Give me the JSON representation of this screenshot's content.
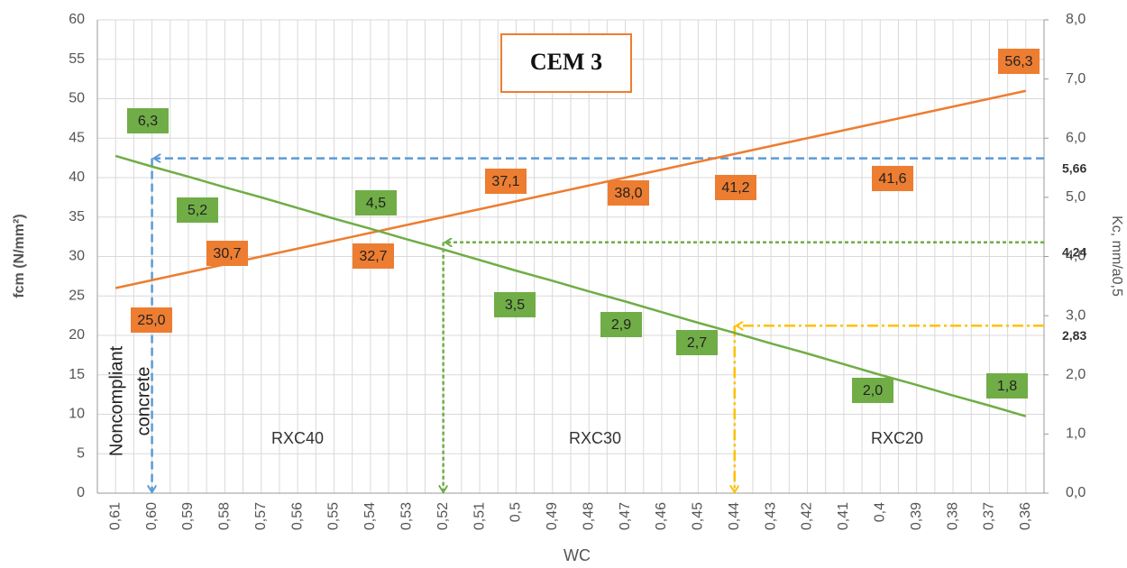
{
  "chart_data": {
    "type": "line",
    "title": "CEM 3",
    "x_label": "WC",
    "y_label": "fcm (N/mm²)",
    "y2_label": "Kc, mm/a0,5",
    "categories": [
      "0,61",
      "0,60",
      "0,59",
      "0,58",
      "0,57",
      "0,56",
      "0,55",
      "0,54",
      "0,53",
      "0,52",
      "0,51",
      "0,5",
      "0,49",
      "0,48",
      "0,47",
      "0,46",
      "0,45",
      "0,44",
      "0,43",
      "0,42",
      "0,41",
      "0,4",
      "0,39",
      "0,38",
      "0,37",
      "0,36"
    ],
    "series": [
      {
        "color": "#ed7d31",
        "values": [
          26,
          27,
          28,
          29,
          30,
          31,
          32,
          33,
          34,
          35,
          36,
          37,
          38,
          39,
          40,
          41,
          42,
          43,
          44,
          45,
          46,
          47,
          48,
          49,
          50,
          51
        ]
      },
      {
        "color": "#70ad47",
        "axis": "y2",
        "values": [
          5.7,
          5.52,
          5.35,
          5.17,
          5.0,
          4.82,
          4.64,
          4.47,
          4.29,
          4.12,
          3.94,
          3.76,
          3.59,
          3.41,
          3.24,
          3.06,
          2.88,
          2.71,
          2.53,
          2.36,
          2.18,
          2.0,
          1.83,
          1.65,
          1.48,
          1.3
        ]
      }
    ],
    "ylim": [
      0,
      60
    ],
    "yticks": [
      0,
      5,
      10,
      15,
      20,
      25,
      30,
      35,
      40,
      45,
      50,
      55,
      60
    ],
    "y2lim": [
      0,
      8
    ],
    "y2ticks": [
      {
        "value": 0,
        "label": "0,0"
      },
      {
        "value": 1,
        "label": "1,0"
      },
      {
        "value": 2,
        "label": "2,0"
      },
      {
        "value": 3,
        "label": "3,0"
      },
      {
        "value": 4,
        "label": "4,0"
      },
      {
        "value": 5,
        "label": "5,0"
      },
      {
        "value": 6,
        "label": "6,0"
      },
      {
        "value": 7,
        "label": "7,0"
      },
      {
        "value": 8,
        "label": "8,0"
      }
    ],
    "grid": true,
    "reference_lines": [
      {
        "x": "0,60",
        "y2": {
          "value": 5.66,
          "label": "5,66"
        },
        "color": "#5b9bd5",
        "dash": "dash"
      },
      {
        "x": "0,52",
        "y2": {
          "value": 4.24,
          "label": "4,24"
        },
        "color": "#70ad47",
        "dash": "dot"
      },
      {
        "x": "0,44",
        "y2": {
          "value": 2.83,
          "label": "2,83"
        },
        "color": "#ffc000",
        "dash": "dashdot"
      }
    ],
    "orange_labels": [
      "25,0",
      "30,7",
      "32,7",
      "37,1",
      "38,0",
      "41,2",
      "41,6",
      "56,3"
    ],
    "green_labels": [
      "6,3",
      "5,2",
      "4,5",
      "3,5",
      "2,9",
      "2,7",
      "2,0",
      "1,8"
    ],
    "regions": [
      "RXC40",
      "RXC30",
      "RXC20"
    ],
    "noncompliant": [
      "Noncompliant",
      "concrete"
    ]
  }
}
